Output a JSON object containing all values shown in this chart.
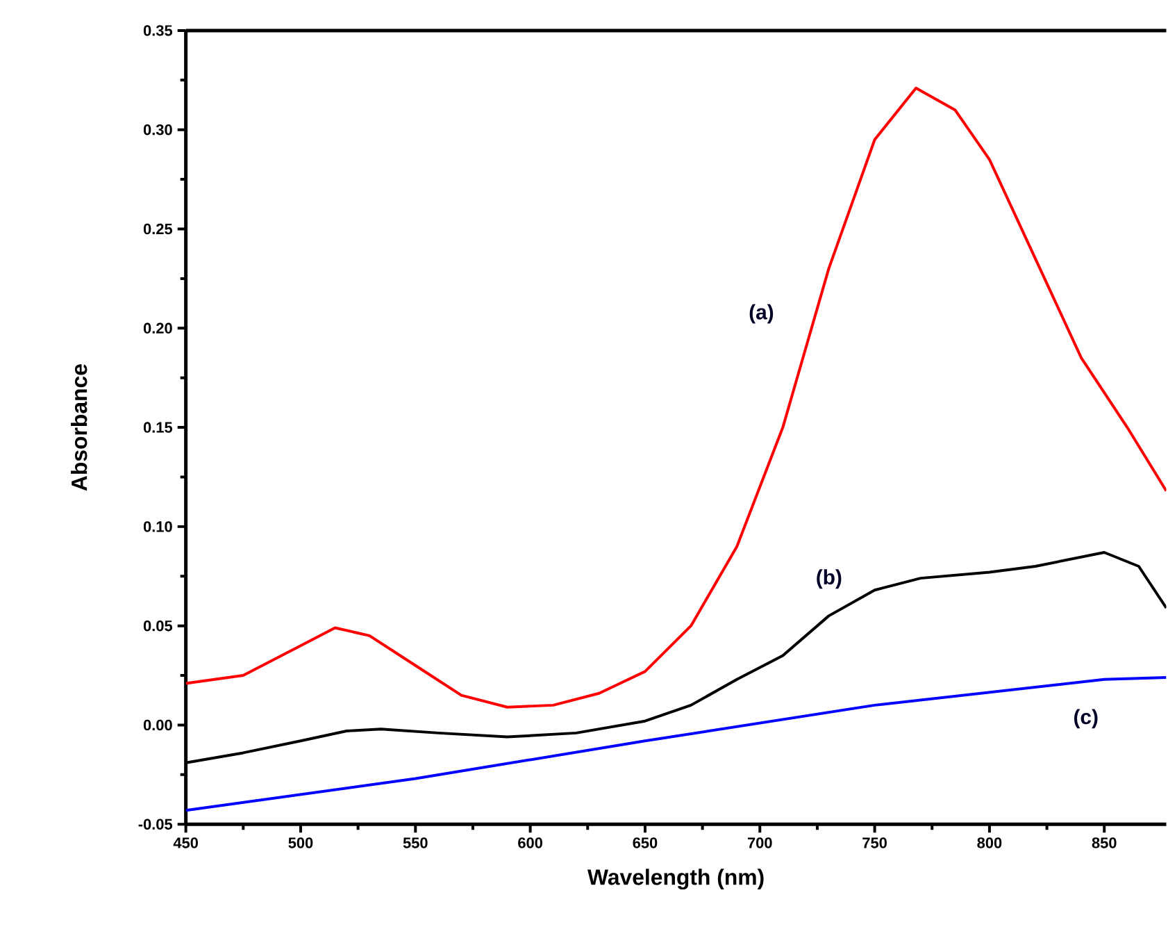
{
  "chart_data": {
    "type": "line",
    "xlabel": "Wavelength (nm)",
    "ylabel": "Absorbance",
    "xlim": [
      450,
      877
    ],
    "xticks": [
      450,
      500,
      550,
      600,
      650,
      700,
      750,
      800,
      850
    ],
    "ylim": [
      -0.05,
      0.35
    ],
    "yticks": [
      {
        "value": -0.05,
        "label": "-0.05"
      },
      {
        "value": 0,
        "label": "0.00"
      },
      {
        "value": 0.05,
        "label": "0.05"
      },
      {
        "value": 0.1,
        "label": "0.10"
      },
      {
        "value": 0.15,
        "label": "0.15"
      },
      {
        "value": 0.2,
        "label": "0.20"
      },
      {
        "value": 0.25,
        "label": "0.25"
      },
      {
        "value": 0.3,
        "label": "0.30"
      },
      {
        "value": 0.35,
        "label": "0.35"
      }
    ],
    "grid": false,
    "marker": "none",
    "line_style": "solid",
    "series": [
      {
        "color": "#ff0000",
        "x": [
          450,
          475,
          500,
          515,
          530,
          550,
          570,
          590,
          610,
          630,
          650,
          670,
          690,
          710,
          730,
          750,
          768,
          785,
          800,
          820,
          840,
          860,
          877
        ],
        "values": [
          0.021,
          0.025,
          0.04,
          0.049,
          0.045,
          0.03,
          0.015,
          0.009,
          0.01,
          0.016,
          0.027,
          0.05,
          0.09,
          0.15,
          0.23,
          0.295,
          0.321,
          0.31,
          0.285,
          0.235,
          0.185,
          0.15,
          0.118
        ]
      },
      {
        "color": "#000000",
        "x": [
          450,
          475,
          500,
          520,
          535,
          560,
          590,
          620,
          650,
          670,
          690,
          710,
          730,
          750,
          770,
          800,
          820,
          850,
          865,
          877
        ],
        "values": [
          -0.019,
          -0.014,
          -0.008,
          -0.003,
          -0.002,
          -0.004,
          -0.006,
          -0.004,
          0.002,
          0.01,
          0.023,
          0.035,
          0.055,
          0.068,
          0.074,
          0.077,
          0.08,
          0.087,
          0.08,
          0.059
        ]
      },
      {
        "color": "#0000ff",
        "x": [
          450,
          550,
          650,
          750,
          850,
          877
        ],
        "values": [
          -0.043,
          -0.027,
          -0.008,
          0.01,
          0.023,
          0.024
        ]
      }
    ],
    "annotations": [
      "(a)",
      "(b)",
      "(c)"
    ]
  }
}
